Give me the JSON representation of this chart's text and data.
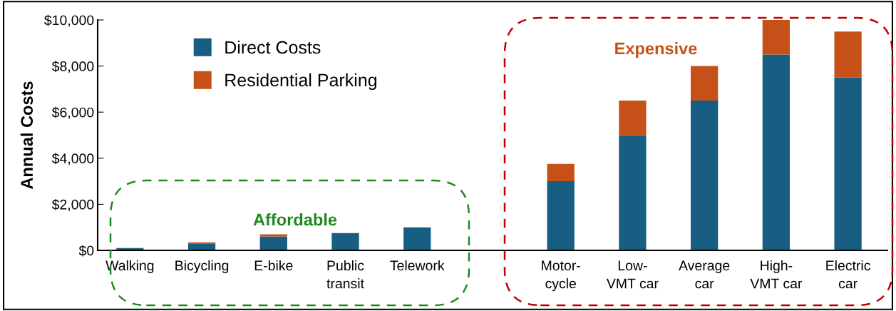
{
  "chart_data": {
    "type": "bar",
    "stacked": true,
    "categories": [
      "Walking",
      "Bicycling",
      "E-bike",
      "Public\ntransit",
      "Telework",
      null,
      "Motor-\ncycle",
      "Low-\nVMT car",
      "Average\ncar",
      "High-\nVMT car",
      "Electric\ncar"
    ],
    "series": [
      {
        "name": "Direct Costs",
        "color": "#175e82",
        "values": [
          100,
          300,
          600,
          750,
          1000,
          null,
          3000,
          5000,
          6500,
          8500,
          7500
        ]
      },
      {
        "name": "Residential Parking",
        "color": "#c55119",
        "values": [
          0,
          50,
          100,
          0,
          0,
          null,
          750,
          1500,
          1500,
          1500,
          2000
        ]
      }
    ],
    "ylabel": "Annual Costs",
    "ylim": [
      0,
      10000
    ],
    "yticks": [
      {
        "value": 0,
        "label": "$0"
      },
      {
        "value": 2000,
        "label": "$2,000"
      },
      {
        "value": 4000,
        "label": "$4,000"
      },
      {
        "value": 6000,
        "label": "$6,000"
      },
      {
        "value": 8000,
        "label": "$8,000"
      },
      {
        "value": 10000,
        "label": "$10,000"
      }
    ],
    "annotations": [
      "Affordable",
      "Expensive"
    ],
    "legend": "top left",
    "grid": false
  }
}
